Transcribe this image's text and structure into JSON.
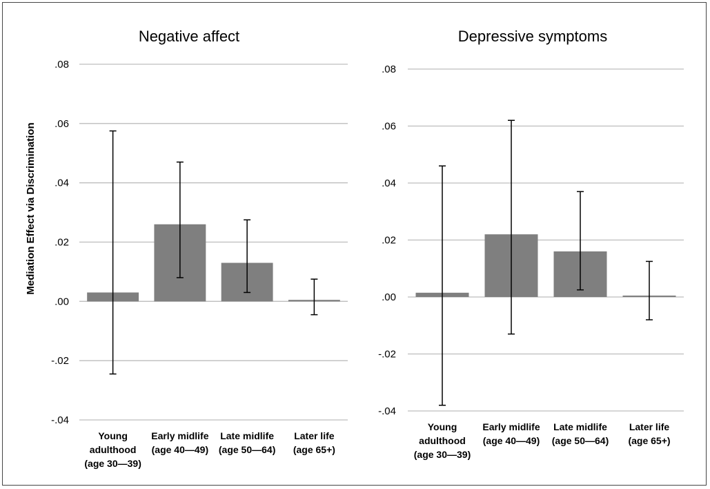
{
  "chart_data": [
    {
      "type": "bar",
      "title": "Negative affect",
      "ylabel": "Mediation Effect via Discrimination",
      "categories": [
        [
          "Young",
          "adulthood",
          "(age 30—39)"
        ],
        [
          "Early midlife",
          "(age 40—49)"
        ],
        [
          "Late midlife",
          "(age 50—64)"
        ],
        [
          "Later life",
          "(age 65+)"
        ]
      ],
      "values": [
        0.003,
        0.026,
        0.013,
        0.0005
      ],
      "error_low": [
        -0.0245,
        0.008,
        0.003,
        -0.0045
      ],
      "error_high": [
        0.0575,
        0.047,
        0.0275,
        0.0075
      ],
      "ylim": [
        -0.04,
        0.08
      ],
      "yticks": [
        ".08",
        ".06",
        ".04",
        ".02",
        ".00",
        "-.02",
        "-.04"
      ],
      "ytick_values": [
        0.08,
        0.06,
        0.04,
        0.02,
        0.0,
        -0.02,
        -0.04
      ],
      "grid": true,
      "bar_color": "#7f7f7f"
    },
    {
      "type": "bar",
      "title": "Depressive symptoms",
      "categories": [
        [
          "Young",
          "adulthood",
          "(age 30—39)"
        ],
        [
          "Early midlife",
          "(age 40—49)"
        ],
        [
          "Late midlife",
          "(age 50—64)"
        ],
        [
          "Later life",
          "(age 65+)"
        ]
      ],
      "values": [
        0.0015,
        0.022,
        0.016,
        0.0005
      ],
      "error_low": [
        -0.038,
        -0.013,
        0.0025,
        -0.008
      ],
      "error_high": [
        0.046,
        0.062,
        0.037,
        0.0125
      ],
      "ylim": [
        -0.04,
        0.08
      ],
      "yticks": [
        ".08",
        ".06",
        ".04",
        ".02",
        ".00",
        "-.02",
        "-.04"
      ],
      "ytick_values": [
        0.08,
        0.06,
        0.04,
        0.02,
        0.0,
        -0.02,
        -0.04
      ],
      "grid": true,
      "bar_color": "#7f7f7f"
    }
  ]
}
